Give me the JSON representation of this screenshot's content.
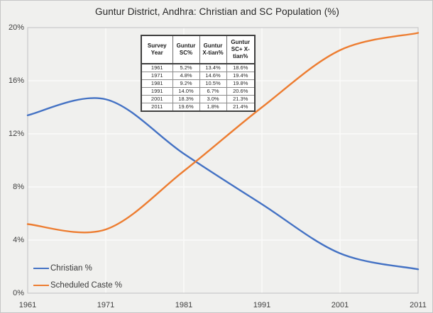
{
  "chart_data": {
    "type": "line",
    "title": "Guntur District, Andhra: Christian and SC Population (%)",
    "x": [
      1961,
      1971,
      1981,
      1991,
      2001,
      2011
    ],
    "x_tick_labels": [
      "1961",
      "1971",
      "1981",
      "1991",
      "2001",
      "2011"
    ],
    "series": [
      {
        "name": "Christian %",
        "color": "#4472C4",
        "values": [
          13.4,
          14.6,
          10.5,
          6.7,
          3.0,
          1.8
        ]
      },
      {
        "name": "Scheduled Caste %",
        "color": "#ED7D31",
        "values": [
          5.2,
          4.8,
          9.2,
          14.0,
          18.3,
          19.6
        ]
      }
    ],
    "ylim": [
      0,
      20
    ],
    "yticks": [
      0,
      4,
      8,
      12,
      16,
      20
    ],
    "y_tick_labels": [
      "0%",
      "4%",
      "8%",
      "12%",
      "16%",
      "20%"
    ],
    "smooth": true,
    "grid": true,
    "legend_position": "bottom-left"
  },
  "inset_table": {
    "columns": [
      "Survey Year",
      "Guntur SC%",
      "Guntur X-tian%",
      "Guntur SC+ X-tian%"
    ],
    "rows": [
      [
        "1961",
        "5.2%",
        "13.4%",
        "18.6%"
      ],
      [
        "1971",
        "4.8%",
        "14.6%",
        "19.4%"
      ],
      [
        "1981",
        "9.2%",
        "10.5%",
        "19.8%"
      ],
      [
        "1991",
        "14.0%",
        "6.7%",
        "20.6%"
      ],
      [
        "2001",
        "18.3%",
        "3.0%",
        "21.3%"
      ],
      [
        "2011",
        "19.6%",
        "1.8%",
        "21.4%"
      ]
    ]
  },
  "colors": {
    "background": "#f0f0ee",
    "plot_border": "#c9c9c9",
    "gridline": "#fbfbfa",
    "axis_text": "#404040",
    "title_text": "#262626"
  }
}
